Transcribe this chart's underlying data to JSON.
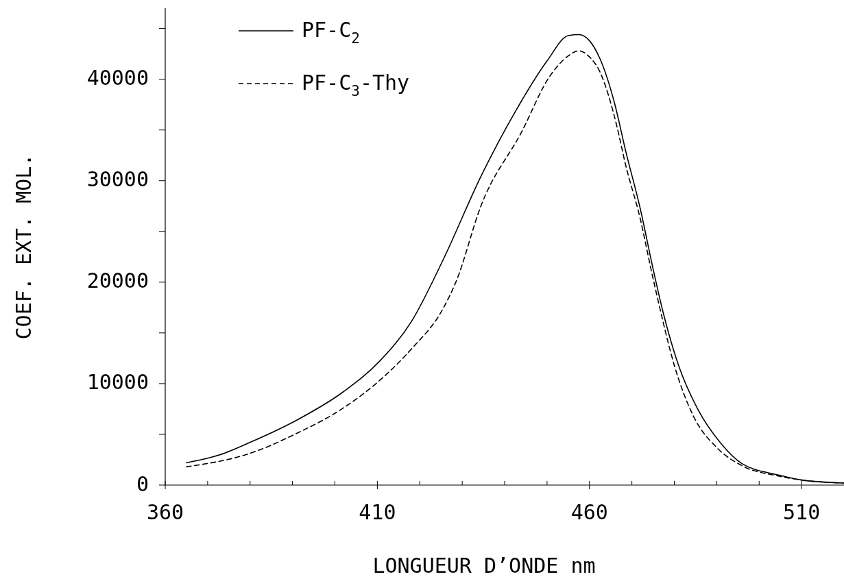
{
  "chart_data": {
    "type": "line",
    "xlabel": "LONGUEUR D’ONDE nm",
    "ylabel": "COEF. EXT. MOL.",
    "xlim": [
      360,
      520
    ],
    "ylim": [
      0,
      47000
    ],
    "xticks": [
      360,
      {
        "value": 370,
        "label": null
      },
      {
        "value": 380,
        "label": null
      },
      {
        "value": 390,
        "label": null
      },
      {
        "value": 400,
        "label": null
      },
      410,
      {
        "value": 420,
        "label": null
      },
      {
        "value": 430,
        "label": null
      },
      {
        "value": 440,
        "label": null
      },
      {
        "value": 450,
        "label": null
      },
      460,
      {
        "value": 470,
        "label": null
      },
      {
        "value": 480,
        "label": null
      },
      {
        "value": 490,
        "label": null
      },
      {
        "value": 500,
        "label": null
      },
      510
    ],
    "yticks": [
      0,
      {
        "value": 5000,
        "label": null
      },
      10000,
      {
        "value": 15000,
        "label": null
      },
      20000,
      {
        "value": 25000,
        "label": null
      },
      30000,
      {
        "value": 35000,
        "label": null
      },
      40000,
      {
        "value": 45000,
        "label": null
      }
    ],
    "grid": false,
    "legend": "top left",
    "marker": "none",
    "series": [
      {
        "name": "PF-C$_{2}$",
        "color": "#000000",
        "line_style": "solid",
        "x": [
          365,
          373,
          380.5,
          391,
          402,
          410.5,
          418,
          425.5,
          434.5,
          442.5,
          450,
          455,
          457.5,
          460,
          462.5,
          466,
          468.5,
          472,
          475,
          477.5,
          481,
          485.5,
          491,
          496,
          504.5,
          510,
          520
        ],
        "values": [
          2200,
          3000,
          4300,
          6400,
          9200,
          12200,
          16100,
          22200,
          30500,
          36800,
          41800,
          44300,
          44400,
          43800,
          42000,
          37500,
          33000,
          27200,
          21300,
          16800,
          11800,
          7500,
          4100,
          2100,
          1000,
          500,
          200
        ]
      },
      {
        "name": "PF-C$_{3}$-Thy",
        "color": "#000000",
        "line_style": "dashed",
        "x": [
          365,
          380.5,
          391,
          402,
          410.5,
          418,
          425.5,
          428.5,
          434.5,
          444,
          450.5,
          455,
          457.5,
          460,
          462.5,
          464.5,
          466.5,
          468.5,
          472,
          474.5,
          476.5,
          480,
          484.5,
          490,
          496,
          504.5,
          510,
          520
        ],
        "values": [
          1800,
          3200,
          5100,
          7600,
          10300,
          13400,
          17400,
          20000,
          27600,
          34800,
          40200,
          42300,
          42800,
          42200,
          40700,
          38400,
          35300,
          31600,
          26200,
          21300,
          17600,
          11800,
          6800,
          3700,
          1900,
          900,
          500,
          200
        ]
      }
    ]
  }
}
